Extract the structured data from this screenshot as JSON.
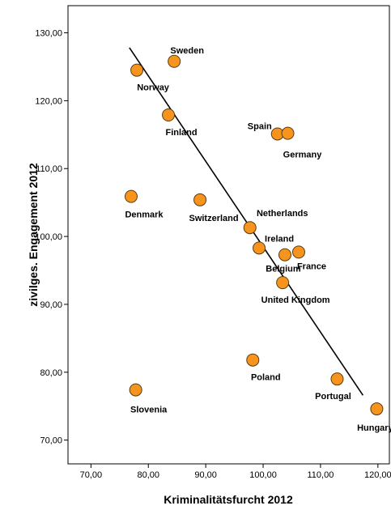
{
  "chart_data": {
    "type": "scatter",
    "xlabel": "Kriminalitätsfurcht 2012",
    "ylabel": "zivilges. Engagement 2012",
    "xlim": [
      66,
      122
    ],
    "ylim": [
      66.5,
      134
    ],
    "x_ticks": [
      "70,00",
      "80,00",
      "90,00",
      "100,00",
      "110,00",
      "120,00"
    ],
    "x_tick_values": [
      70,
      80,
      90,
      100,
      110,
      120
    ],
    "y_ticks": [
      "70,00",
      "80,00",
      "90,00",
      "100,00",
      "110,00",
      "120,00",
      "130,00"
    ],
    "y_tick_values": [
      70,
      80,
      90,
      100,
      110,
      120,
      130
    ],
    "grid": false,
    "point_color": "#f7941d",
    "points": [
      {
        "label": "Norway",
        "x": 78.0,
        "y": 124.5
      },
      {
        "label": "Sweden",
        "x": 84.5,
        "y": 125.8
      },
      {
        "label": "Finland",
        "x": 83.5,
        "y": 117.9
      },
      {
        "label": "Spain",
        "x": 102.5,
        "y": 115.1
      },
      {
        "label": "Germany",
        "x": 104.3,
        "y": 115.2
      },
      {
        "label": "Denmark",
        "x": 77.0,
        "y": 105.9
      },
      {
        "label": "Switzerland",
        "x": 89.0,
        "y": 105.4
      },
      {
        "label": "Netherlands",
        "x": 97.7,
        "y": 101.3
      },
      {
        "label": "Ireland",
        "x": 99.3,
        "y": 98.3
      },
      {
        "label": "Belgium",
        "x": 103.8,
        "y": 97.3
      },
      {
        "label": "France",
        "x": 106.2,
        "y": 97.7
      },
      {
        "label": "United Kingdom",
        "x": 103.4,
        "y": 93.2
      },
      {
        "label": "Poland",
        "x": 98.2,
        "y": 81.8
      },
      {
        "label": "Portugal",
        "x": 112.9,
        "y": 79.0
      },
      {
        "label": "Hungary",
        "x": 119.8,
        "y": 74.6
      },
      {
        "label": "Slovenia",
        "x": 77.8,
        "y": 77.4
      }
    ],
    "fit_line": {
      "x": [
        76.7,
        117.4
      ],
      "y": [
        127.8,
        76.6
      ]
    }
  }
}
